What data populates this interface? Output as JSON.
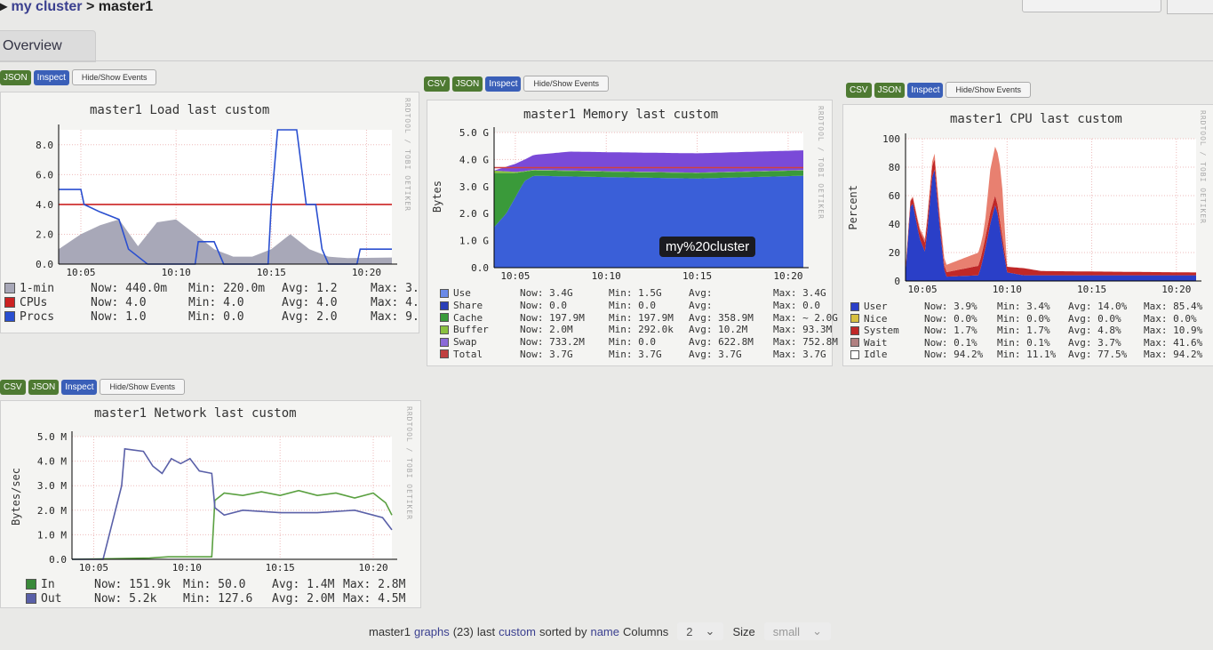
{
  "breadcrumb": {
    "cluster": "my cluster",
    "sep": " > ",
    "host": "master1"
  },
  "tab": {
    "label": "Overview"
  },
  "buttons": {
    "csv": "CSV",
    "json": "JSON",
    "inspect": "Inspect",
    "events": "Hide/Show Events"
  },
  "rrd_credit": "RRDTOOL / TOBI OETIKER",
  "tooltip": "my%20cluster",
  "footer": {
    "host": "master1",
    "graphs": "graphs",
    "count": "(23)",
    "last": "last",
    "range": "custom",
    "sorted_by": "sorted by",
    "sort": "name",
    "columns_label": "Columns",
    "columns_value": "2",
    "size_label": "Size",
    "size_value": "small"
  },
  "colors": {
    "grid_red": "#e8b0b0",
    "axis": "#000"
  },
  "chart_data": [
    {
      "id": "load",
      "type": "line",
      "title": "master1 Load last custom",
      "ylabel": "",
      "ylim": [
        0,
        9
      ],
      "yticks": [
        0,
        2,
        4,
        6,
        8
      ],
      "ytick_labels": [
        "0.0",
        "2.0",
        "4.0",
        "6.0",
        "8.0"
      ],
      "xticks": [
        "10:05",
        "10:10",
        "10:15",
        "10:20"
      ],
      "xlim": [
        "10:03:50",
        "10:21:20"
      ],
      "series": [
        {
          "name": "1-min",
          "kind": "area",
          "color": "#a8a8b8",
          "points": [
            [
              "10:03:50",
              1.0
            ],
            [
              "10:05:00",
              2.0
            ],
            [
              "10:06:00",
              2.6
            ],
            [
              "10:07:00",
              3.0
            ],
            [
              "10:08:00",
              1.2
            ],
            [
              "10:09:00",
              2.8
            ],
            [
              "10:10:00",
              3.0
            ],
            [
              "10:11:00",
              2.0
            ],
            [
              "10:12:00",
              1.0
            ],
            [
              "10:13:00",
              0.5
            ],
            [
              "10:14:00",
              0.5
            ],
            [
              "10:15:00",
              1.0
            ],
            [
              "10:16:00",
              2.0
            ],
            [
              "10:17:00",
              1.0
            ],
            [
              "10:18:00",
              0.5
            ],
            [
              "10:19:00",
              0.4
            ],
            [
              "10:21:20",
              0.44
            ]
          ]
        },
        {
          "name": "CPUs",
          "kind": "line",
          "color": "#cc2222",
          "points": [
            [
              "10:03:50",
              4
            ],
            [
              "10:21:20",
              4
            ]
          ]
        },
        {
          "name": "Procs",
          "kind": "line",
          "color": "#2a4fd0",
          "points": [
            [
              "10:03:50",
              5
            ],
            [
              "10:05:00",
              5
            ],
            [
              "10:05:10",
              4
            ],
            [
              "10:06:00",
              3.5
            ],
            [
              "10:07:00",
              3
            ],
            [
              "10:07:30",
              1
            ],
            [
              "10:08:30",
              0
            ],
            [
              "10:11:00",
              0
            ],
            [
              "10:11:10",
              1.5
            ],
            [
              "10:12:00",
              1.5
            ],
            [
              "10:12:30",
              0
            ],
            [
              "10:14:50",
              0
            ],
            [
              "10:15:00",
              4
            ],
            [
              "10:15:20",
              9
            ],
            [
              "10:16:20",
              9
            ],
            [
              "10:16:50",
              4
            ],
            [
              "10:17:20",
              4
            ],
            [
              "10:17:40",
              1
            ],
            [
              "10:18:00",
              0
            ],
            [
              "10:19:30",
              0
            ],
            [
              "10:19:40",
              1
            ],
            [
              "10:21:20",
              1
            ]
          ]
        }
      ],
      "legend": [
        {
          "name": "1-min",
          "color": "#a8a8b8",
          "now": "440.0m",
          "min": "220.0m",
          "avg": "1.2",
          "max": "3."
        },
        {
          "name": "CPUs",
          "color": "#cc2222",
          "now": "4.0",
          "min": "4.0",
          "avg": "4.0",
          "max": "4."
        },
        {
          "name": "Procs",
          "color": "#2a4fd0",
          "now": "1.0",
          "min": "0.0",
          "avg": "2.0",
          "max": "9."
        }
      ]
    },
    {
      "id": "mem",
      "type": "area",
      "stacked": true,
      "title": "master1 Memory last custom",
      "ylabel": "Bytes",
      "ylim": [
        0,
        5
      ],
      "yticks": [
        0,
        1,
        2,
        3,
        4,
        5
      ],
      "ytick_labels": [
        "0.0",
        "1.0 G",
        "2.0 G",
        "3.0 G",
        "4.0 G",
        "5.0 G"
      ],
      "xticks": [
        "10:05",
        "10:10",
        "10:15",
        "10:20"
      ],
      "xlim": [
        "10:03:50",
        "10:20:50"
      ],
      "series": [
        {
          "name": "Use",
          "color": "#3a5fd8",
          "points": [
            [
              "10:03:50",
              1.5
            ],
            [
              "10:04:30",
              2.0
            ],
            [
              "10:05:00",
              2.6
            ],
            [
              "10:05:30",
              3.2
            ],
            [
              "10:06:00",
              3.4
            ],
            [
              "10:10:00",
              3.35
            ],
            [
              "10:15:00",
              3.3
            ],
            [
              "10:20:50",
              3.4
            ]
          ]
        },
        {
          "name": "Share",
          "color": "#2233aa",
          "points": [
            [
              "10:03:50",
              0
            ],
            [
              "10:20:50",
              0
            ]
          ]
        },
        {
          "name": "Cache",
          "color": "#3a9a3a",
          "points": [
            [
              "10:03:50",
              2.0
            ],
            [
              "10:04:30",
              1.5
            ],
            [
              "10:05:00",
              0.9
            ],
            [
              "10:05:30",
              0.35
            ],
            [
              "10:06:00",
              0.2
            ],
            [
              "10:20:50",
              0.2
            ]
          ]
        },
        {
          "name": "Buffer",
          "color": "#8ac040",
          "points": [
            [
              "10:03:50",
              0.09
            ],
            [
              "10:05:30",
              0.02
            ],
            [
              "10:20:50",
              0.01
            ]
          ]
        },
        {
          "name": "Swap",
          "color": "#7a4ad8",
          "points": [
            [
              "10:03:50",
              0.0
            ],
            [
              "10:05:00",
              0.3
            ],
            [
              "10:06:00",
              0.55
            ],
            [
              "10:08:00",
              0.7
            ],
            [
              "10:20:50",
              0.73
            ]
          ]
        },
        {
          "name": "Total",
          "kind": "line",
          "color": "#d04040",
          "points": [
            [
              "10:03:50",
              3.7
            ],
            [
              "10:20:50",
              3.7
            ]
          ]
        }
      ],
      "legend": [
        {
          "name": "Use",
          "color": "#6a8ae8",
          "now": "3.4G",
          "min": "1.5G",
          "avg": "",
          "max": "3.4G"
        },
        {
          "name": "Share",
          "color": "#2a3fb8",
          "now": "0.0",
          "min": "0.0",
          "avg": "",
          "max": "0.0"
        },
        {
          "name": "Cache",
          "color": "#3a9a3a",
          "now": "197.9M",
          "min": "197.9M",
          "avg": "358.9M",
          "max": "~ 2.0G"
        },
        {
          "name": "Buffer",
          "color": "#8ac040",
          "now": "2.0M",
          "min": "292.0k",
          "avg": "10.2M",
          "max": "93.3M"
        },
        {
          "name": "Swap",
          "color": "#8a6ad8",
          "now": "733.2M",
          "min": "0.0",
          "avg": "622.8M",
          "max": "752.8M"
        },
        {
          "name": "Total",
          "color": "#c04040",
          "now": "3.7G",
          "min": "3.7G",
          "avg": "3.7G",
          "max": "3.7G"
        }
      ]
    },
    {
      "id": "cpu",
      "type": "area",
      "stacked": true,
      "title": "master1 CPU last custom",
      "ylabel": "Percent",
      "ylim": [
        0,
        100
      ],
      "yticks": [
        0,
        20,
        40,
        60,
        80,
        100
      ],
      "ytick_labels": [
        "0",
        "20",
        "40",
        "60",
        "80",
        "100"
      ],
      "xticks": [
        "10:05",
        "10:10",
        "10:15",
        "10:20"
      ],
      "xlim": [
        "10:04:00",
        "10:21:10"
      ],
      "series": [
        {
          "name": "User",
          "color": "#2a3fc8",
          "points": [
            [
              "10:04:00",
              5
            ],
            [
              "10:04:20",
              60
            ],
            [
              "10:04:50",
              30
            ],
            [
              "10:05:10",
              20
            ],
            [
              "10:05:40",
              85
            ],
            [
              "10:06:00",
              40
            ],
            [
              "10:06:20",
              3
            ],
            [
              "10:08:20",
              4
            ],
            [
              "10:08:40",
              20
            ],
            [
              "10:09:00",
              40
            ],
            [
              "10:09:20",
              55
            ],
            [
              "10:09:40",
              30
            ],
            [
              "10:10:00",
              6
            ],
            [
              "10:11:00",
              4
            ],
            [
              "10:21:10",
              4
            ]
          ]
        },
        {
          "name": "Nice",
          "color": "#d8c040",
          "points": [
            [
              "10:04:00",
              0
            ],
            [
              "10:21:10",
              0
            ]
          ]
        },
        {
          "name": "System",
          "color": "#c02828",
          "points": [
            [
              "10:04:00",
              3
            ],
            [
              "10:05:40",
              8
            ],
            [
              "10:06:20",
              3
            ],
            [
              "10:09:00",
              8
            ],
            [
              "10:10:00",
              4
            ],
            [
              "10:11:00",
              5
            ],
            [
              "10:12:00",
              3
            ],
            [
              "10:21:10",
              2
            ]
          ]
        },
        {
          "name": "Wait",
          "color": "#e88070",
          "points": [
            [
              "10:04:00",
              0
            ],
            [
              "10:08:40",
              10
            ],
            [
              "10:09:00",
              30
            ],
            [
              "10:09:20",
              35
            ],
            [
              "10:09:40",
              40
            ],
            [
              "10:10:00",
              0
            ],
            [
              "10:21:10",
              0
            ]
          ]
        },
        {
          "name": "Idle",
          "color": "#ffffff",
          "points": []
        }
      ],
      "legend": [
        {
          "name": "User",
          "color": "#2a3fc8",
          "now": "3.9%",
          "min": "3.4%",
          "avg": "14.0%",
          "max": "85.4%"
        },
        {
          "name": "Nice",
          "color": "#d8c040",
          "now": "0.0%",
          "min": "0.0%",
          "avg": "0.0%",
          "max": "0.0%"
        },
        {
          "name": "System",
          "color": "#c02828",
          "now": "1.7%",
          "min": "1.7%",
          "avg": "4.8%",
          "max": "10.9%"
        },
        {
          "name": "Wait",
          "color": "#b08080",
          "now": "0.1%",
          "min": "0.1%",
          "avg": "3.7%",
          "max": "41.6%"
        },
        {
          "name": "Idle",
          "color": "#ffffff",
          "now": "94.2%",
          "min": "11.1%",
          "avg": "77.5%",
          "max": "94.2%"
        }
      ]
    },
    {
      "id": "net",
      "type": "line",
      "title": "master1 Network last custom",
      "ylabel": "Bytes/sec",
      "ylim": [
        0,
        5
      ],
      "yticks": [
        0,
        1,
        2,
        3,
        4,
        5
      ],
      "ytick_labels": [
        "0.0",
        "1.0 M",
        "2.0 M",
        "3.0 M",
        "4.0 M",
        "5.0 M"
      ],
      "xticks": [
        "10:05",
        "10:10",
        "10:15",
        "10:20"
      ],
      "xlim": [
        "10:03:50",
        "10:21:00"
      ],
      "series": [
        {
          "name": "In",
          "color": "#5aa040",
          "points": [
            [
              "10:03:50",
              0
            ],
            [
              "10:08:00",
              0.05
            ],
            [
              "10:09:00",
              0.1
            ],
            [
              "10:11:20",
              0.1
            ],
            [
              "10:11:30",
              2.4
            ],
            [
              "10:12:00",
              2.7
            ],
            [
              "10:13:00",
              2.6
            ],
            [
              "10:14:00",
              2.75
            ],
            [
              "10:15:00",
              2.6
            ],
            [
              "10:16:00",
              2.8
            ],
            [
              "10:17:00",
              2.6
            ],
            [
              "10:18:00",
              2.7
            ],
            [
              "10:19:00",
              2.5
            ],
            [
              "10:20:00",
              2.7
            ],
            [
              "10:20:40",
              2.3
            ],
            [
              "10:21:00",
              1.8
            ]
          ]
        },
        {
          "name": "Out",
          "color": "#5a60a8",
          "points": [
            [
              "10:03:50",
              0
            ],
            [
              "10:05:30",
              0
            ],
            [
              "10:06:30",
              3.0
            ],
            [
              "10:06:40",
              4.5
            ],
            [
              "10:07:40",
              4.4
            ],
            [
              "10:08:10",
              3.8
            ],
            [
              "10:08:40",
              3.5
            ],
            [
              "10:09:10",
              4.1
            ],
            [
              "10:09:40",
              3.9
            ],
            [
              "10:10:10",
              4.1
            ],
            [
              "10:10:40",
              3.6
            ],
            [
              "10:11:20",
              3.5
            ],
            [
              "10:11:30",
              2.1
            ],
            [
              "10:12:00",
              1.8
            ],
            [
              "10:13:00",
              2.0
            ],
            [
              "10:15:00",
              1.9
            ],
            [
              "10:17:00",
              1.9
            ],
            [
              "10:19:00",
              2.0
            ],
            [
              "10:20:30",
              1.7
            ],
            [
              "10:21:00",
              1.2
            ]
          ]
        }
      ],
      "legend": [
        {
          "name": "In",
          "color": "#3a8a3a",
          "now": "151.9k",
          "min": "50.0",
          "avg": "1.4M",
          "max": "2.8M"
        },
        {
          "name": "Out",
          "color": "#5a60a8",
          "now": "5.2k",
          "min": "127.6",
          "avg": "2.0M",
          "max": "4.5M"
        }
      ]
    }
  ]
}
